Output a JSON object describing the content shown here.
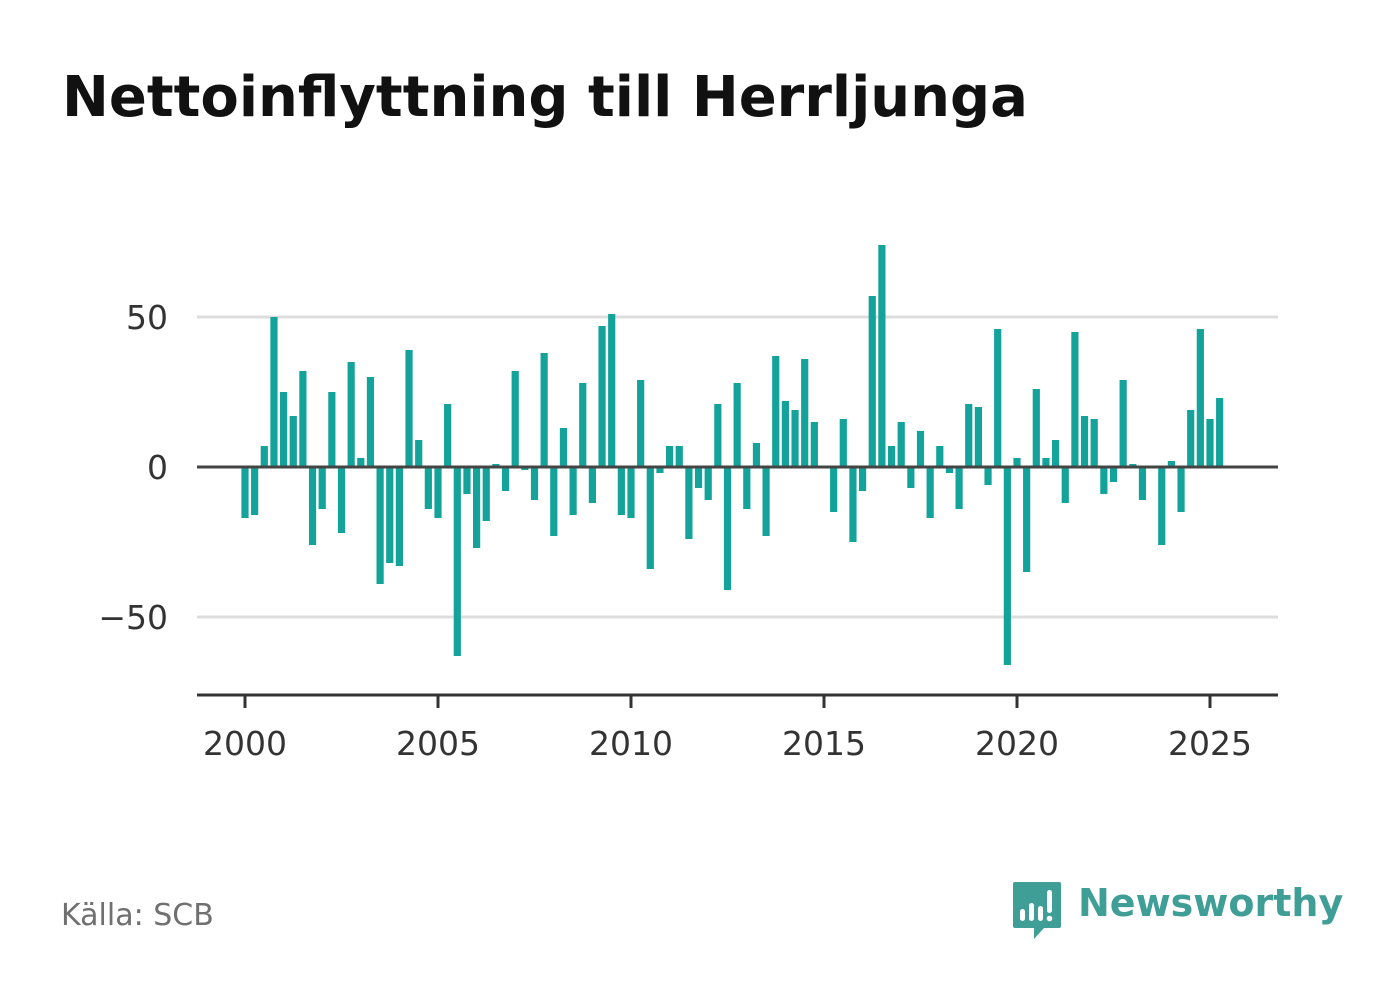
{
  "title": "Nettoinflyttning till Herrljunga",
  "source": "Källa: SCB",
  "logo": {
    "text": "Newsworthy",
    "icon": "newsworthy-logo-icon",
    "color": "#3f9e96"
  },
  "colors": {
    "bar": "#14a39a",
    "zero_line": "#444444",
    "grid": "#dddddd",
    "axis": "#333333"
  },
  "chart_data": {
    "type": "bar",
    "title": "Nettoinflyttning till Herrljunga",
    "xlabel": "",
    "ylabel": "",
    "frequency": "quarterly",
    "x_ticks": [
      2000,
      2005,
      2010,
      2015,
      2020,
      2025
    ],
    "y_ticks": [
      50,
      0,
      -50
    ],
    "y_tick_labels": [
      "50",
      "0",
      "−50"
    ],
    "xlim": [
      1999.25,
      2026.75
    ],
    "ylim": [
      -76,
      76
    ],
    "grid": true,
    "grid_axis": "y",
    "legend": "none",
    "series": [
      {
        "values": [
          {
            "x": 2000.0,
            "y": -17
          },
          {
            "x": 2000.25,
            "y": -16
          },
          {
            "x": 2000.5,
            "y": 7
          },
          {
            "x": 2000.75,
            "y": 50
          },
          {
            "x": 2001.0,
            "y": 25
          },
          {
            "x": 2001.25,
            "y": 17
          },
          {
            "x": 2001.5,
            "y": 32
          },
          {
            "x": 2001.75,
            "y": -26
          },
          {
            "x": 2002.0,
            "y": -14
          },
          {
            "x": 2002.25,
            "y": 25
          },
          {
            "x": 2002.5,
            "y": -22
          },
          {
            "x": 2002.75,
            "y": 35
          },
          {
            "x": 2003.0,
            "y": 3
          },
          {
            "x": 2003.25,
            "y": 30
          },
          {
            "x": 2003.5,
            "y": -39
          },
          {
            "x": 2003.75,
            "y": -32
          },
          {
            "x": 2004.0,
            "y": -33
          },
          {
            "x": 2004.25,
            "y": 39
          },
          {
            "x": 2004.5,
            "y": 9
          },
          {
            "x": 2004.75,
            "y": -14
          },
          {
            "x": 2005.0,
            "y": -17
          },
          {
            "x": 2005.25,
            "y": 21
          },
          {
            "x": 2005.5,
            "y": -63
          },
          {
            "x": 2005.75,
            "y": -9
          },
          {
            "x": 2006.0,
            "y": -27
          },
          {
            "x": 2006.25,
            "y": -18
          },
          {
            "x": 2006.5,
            "y": 1
          },
          {
            "x": 2006.75,
            "y": -8
          },
          {
            "x": 2007.0,
            "y": 32
          },
          {
            "x": 2007.25,
            "y": -1
          },
          {
            "x": 2007.5,
            "y": -11
          },
          {
            "x": 2007.75,
            "y": 38
          },
          {
            "x": 2008.0,
            "y": -23
          },
          {
            "x": 2008.25,
            "y": 13
          },
          {
            "x": 2008.5,
            "y": -16
          },
          {
            "x": 2008.75,
            "y": 28
          },
          {
            "x": 2009.0,
            "y": -12
          },
          {
            "x": 2009.25,
            "y": 47
          },
          {
            "x": 2009.5,
            "y": 51
          },
          {
            "x": 2009.75,
            "y": -16
          },
          {
            "x": 2010.0,
            "y": -17
          },
          {
            "x": 2010.25,
            "y": 29
          },
          {
            "x": 2010.5,
            "y": -34
          },
          {
            "x": 2010.75,
            "y": -2
          },
          {
            "x": 2011.0,
            "y": 7
          },
          {
            "x": 2011.25,
            "y": 7
          },
          {
            "x": 2011.5,
            "y": -24
          },
          {
            "x": 2011.75,
            "y": -7
          },
          {
            "x": 2012.0,
            "y": -11
          },
          {
            "x": 2012.25,
            "y": 21
          },
          {
            "x": 2012.5,
            "y": -41
          },
          {
            "x": 2012.75,
            "y": 28
          },
          {
            "x": 2013.0,
            "y": -14
          },
          {
            "x": 2013.25,
            "y": 8
          },
          {
            "x": 2013.5,
            "y": -23
          },
          {
            "x": 2013.75,
            "y": 37
          },
          {
            "x": 2014.0,
            "y": 22
          },
          {
            "x": 2014.25,
            "y": 19
          },
          {
            "x": 2014.5,
            "y": 36
          },
          {
            "x": 2014.75,
            "y": 15
          },
          {
            "x": 2015.25,
            "y": -15
          },
          {
            "x": 2015.5,
            "y": 16
          },
          {
            "x": 2015.75,
            "y": -25
          },
          {
            "x": 2016.0,
            "y": -8
          },
          {
            "x": 2016.25,
            "y": 57
          },
          {
            "x": 2016.5,
            "y": 74
          },
          {
            "x": 2016.75,
            "y": 7
          },
          {
            "x": 2017.0,
            "y": 15
          },
          {
            "x": 2017.25,
            "y": -7
          },
          {
            "x": 2017.5,
            "y": 12
          },
          {
            "x": 2017.75,
            "y": -17
          },
          {
            "x": 2018.0,
            "y": 7
          },
          {
            "x": 2018.25,
            "y": -2
          },
          {
            "x": 2018.5,
            "y": -14
          },
          {
            "x": 2018.75,
            "y": 21
          },
          {
            "x": 2019.0,
            "y": 20
          },
          {
            "x": 2019.25,
            "y": -6
          },
          {
            "x": 2019.5,
            "y": 46
          },
          {
            "x": 2019.75,
            "y": -66
          },
          {
            "x": 2020.0,
            "y": 3
          },
          {
            "x": 2020.25,
            "y": -35
          },
          {
            "x": 2020.5,
            "y": 26
          },
          {
            "x": 2020.75,
            "y": 3
          },
          {
            "x": 2021.0,
            "y": 9
          },
          {
            "x": 2021.25,
            "y": -12
          },
          {
            "x": 2021.5,
            "y": 45
          },
          {
            "x": 2021.75,
            "y": 17
          },
          {
            "x": 2022.0,
            "y": 16
          },
          {
            "x": 2022.25,
            "y": -9
          },
          {
            "x": 2022.5,
            "y": -5
          },
          {
            "x": 2022.75,
            "y": 29
          },
          {
            "x": 2023.0,
            "y": 1
          },
          {
            "x": 2023.25,
            "y": -11
          },
          {
            "x": 2023.75,
            "y": -26
          },
          {
            "x": 2024.0,
            "y": 2
          },
          {
            "x": 2024.25,
            "y": -15
          },
          {
            "x": 2024.5,
            "y": 19
          },
          {
            "x": 2024.75,
            "y": 46
          },
          {
            "x": 2025.0,
            "y": 16
          },
          {
            "x": 2025.25,
            "y": 23
          }
        ]
      }
    ]
  }
}
